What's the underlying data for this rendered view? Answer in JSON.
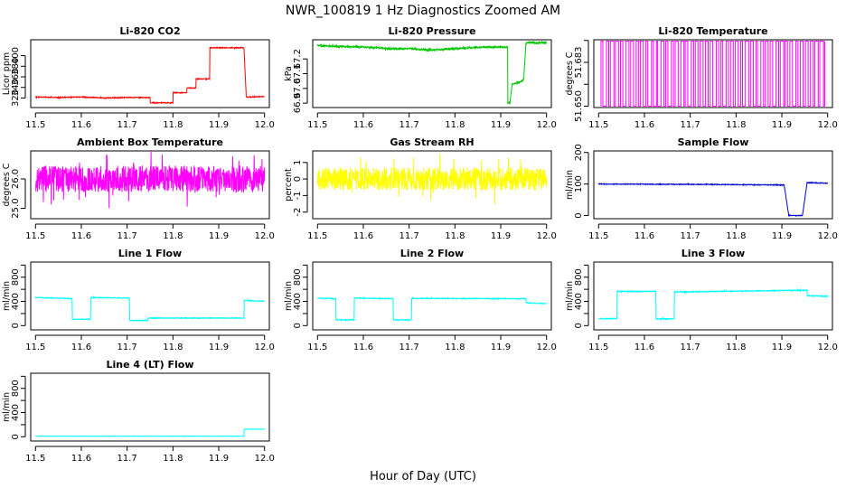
{
  "page": {
    "title": "NWR_100819  1 Hz Diagnostics Zoomed AM",
    "xlabel": "Hour of Day (UTC)"
  },
  "chart_data": [
    {
      "type": "line",
      "title": "Li-820 CO2",
      "xlabel": "",
      "ylabel": "Licor ppm",
      "color": "#ff0000",
      "xlim": [
        11.5,
        12.0
      ],
      "x_ticks": [
        11.5,
        11.6,
        11.7,
        11.8,
        11.9,
        12.0
      ],
      "x_tick_labels": [
        "11.5",
        "11.6",
        "11.7",
        "11.8",
        "11.9",
        "12.0"
      ],
      "ylim": [
        302,
        430
      ],
      "y_ticks": [
        320,
        340,
        360,
        380,
        400
      ],
      "y_tick_labels": [
        "320",
        "340",
        "360",
        "380",
        "400"
      ],
      "noise": 0.8,
      "series": [
        {
          "x": [
            11.5,
            11.55,
            11.6,
            11.65,
            11.7,
            11.75,
            11.75,
            11.8,
            11.8,
            11.83,
            11.83,
            11.85,
            11.85,
            11.88,
            11.88,
            11.955,
            11.96,
            11.97,
            12.0
          ],
          "y": [
            322,
            321,
            322,
            320,
            321,
            321,
            311,
            311,
            330,
            330,
            339,
            339,
            356,
            356,
            415,
            415,
            322,
            322,
            323
          ]
        }
      ]
    },
    {
      "type": "line",
      "title": "Li-820 Pressure",
      "ylabel": "kPa",
      "color": "#00c800",
      "xlim": [
        11.5,
        12.0
      ],
      "x_ticks": [
        11.5,
        11.6,
        11.7,
        11.8,
        11.9,
        12.0
      ],
      "x_tick_labels": [
        "11.5",
        "11.6",
        "11.7",
        "11.8",
        "11.9",
        "12.0"
      ],
      "ylim": [
        66.87,
        67.33
      ],
      "y_ticks": [
        66.9,
        67.0,
        67.1,
        67.2
      ],
      "y_tick_labels": [
        "66.9",
        "67.0",
        "67.1",
        "67.2"
      ],
      "noise": 0.006,
      "series": [
        {
          "x": [
            11.5,
            11.55,
            11.6,
            11.65,
            11.7,
            11.75,
            11.8,
            11.85,
            11.9,
            11.915,
            11.915,
            11.92,
            11.925,
            11.94,
            11.95,
            11.955,
            11.96,
            11.97,
            12.0
          ],
          "y": [
            67.29,
            67.285,
            67.28,
            67.27,
            67.27,
            67.26,
            67.27,
            67.28,
            67.28,
            67.28,
            66.9,
            66.9,
            67.03,
            67.04,
            67.06,
            67.305,
            67.31,
            67.31,
            67.31
          ]
        }
      ]
    },
    {
      "type": "line",
      "title": "Li-820 Temperature",
      "ylabel": "degrees C",
      "color": "#ff00ff",
      "xlim": [
        11.5,
        12.0
      ],
      "x_ticks": [
        11.5,
        11.6,
        11.7,
        11.8,
        11.9,
        12.0
      ],
      "x_tick_labels": [
        "11.5",
        "11.6",
        "11.7",
        "11.8",
        "11.9",
        "12.0"
      ],
      "ylim": [
        51.649,
        51.7
      ],
      "y_ticks": [
        51.65,
        51.6665,
        51.683,
        51.6995
      ],
      "y_tick_labels": [
        "51.650",
        "",
        "51.683",
        ""
      ],
      "toggle": {
        "low": 51.65,
        "high": 51.699,
        "start": 11.505,
        "end": 11.995,
        "count": 90
      },
      "series": []
    },
    {
      "type": "line",
      "title": "Ambient Box Temperature",
      "ylabel": "degrees C",
      "color": "#ff00ff",
      "xlim": [
        11.5,
        12.0
      ],
      "x_ticks": [
        11.5,
        11.6,
        11.7,
        11.8,
        11.9,
        12.0
      ],
      "x_tick_labels": [
        "11.5",
        "11.6",
        "11.7",
        "11.8",
        "11.9",
        "12.0"
      ],
      "ylim": [
        24.65,
        26.95
      ],
      "y_ticks": [
        25.0,
        26.0
      ],
      "y_tick_labels": [
        "25.0",
        "26.0"
      ],
      "noise": 0.45,
      "series": [
        {
          "x": [
            11.5,
            12.0
          ],
          "y": [
            26.0,
            26.0
          ]
        }
      ]
    },
    {
      "type": "line",
      "title": "Gas Stream RH",
      "ylabel": "percent",
      "color": "#ffff00",
      "xlim": [
        11.5,
        12.0
      ],
      "x_ticks": [
        11.5,
        11.6,
        11.7,
        11.8,
        11.9,
        12.0
      ],
      "x_tick_labels": [
        "11.5",
        "11.6",
        "11.7",
        "11.8",
        "11.9",
        "12.0"
      ],
      "ylim": [
        -2.4,
        1.7
      ],
      "y_ticks": [
        -2,
        -1,
        0,
        1
      ],
      "y_tick_labels": [
        "-2",
        "-1",
        "0",
        "1"
      ],
      "noise": 0.7,
      "series": [
        {
          "x": [
            11.5,
            12.0
          ],
          "y": [
            0.0,
            0.0
          ]
        }
      ]
    },
    {
      "type": "line",
      "title": "Sample Flow",
      "ylabel": "ml/min",
      "color": "#0000cc",
      "xlim": [
        11.5,
        12.0
      ],
      "x_ticks": [
        11.5,
        11.6,
        11.7,
        11.8,
        11.9,
        12.0
      ],
      "x_tick_labels": [
        "11.5",
        "11.6",
        "11.7",
        "11.8",
        "11.9",
        "12.0"
      ],
      "ylim": [
        -10,
        205
      ],
      "y_ticks": [
        0,
        100,
        200
      ],
      "y_tick_labels": [
        "0",
        "100",
        "200"
      ],
      "noise": 1.2,
      "series": [
        {
          "x": [
            11.5,
            11.7,
            11.8,
            11.905,
            11.915,
            11.945,
            11.955,
            11.965,
            12.0
          ],
          "y": [
            100,
            99,
            98,
            97,
            0,
            0,
            104,
            104,
            102
          ]
        }
      ]
    },
    {
      "type": "line",
      "title": "Line 1 Flow",
      "ylabel": "ml/min",
      "color": "#00ffff",
      "xlim": [
        11.5,
        12.0
      ],
      "x_ticks": [
        11.5,
        11.6,
        11.7,
        11.8,
        11.9,
        12.0
      ],
      "x_tick_labels": [
        "11.5",
        "11.6",
        "11.7",
        "11.8",
        "11.9",
        "12.0"
      ],
      "ylim": [
        -70,
        1050
      ],
      "y_ticks": [
        0,
        200,
        400,
        600,
        800,
        1000
      ],
      "y_tick_labels": [
        "0",
        "",
        "400",
        "",
        "800",
        ""
      ],
      "noise": 6,
      "series": [
        {
          "x": [
            11.5,
            11.58,
            11.58,
            11.62,
            11.62,
            11.705,
            11.705,
            11.745,
            11.745,
            11.955,
            11.955,
            12.0
          ],
          "y": [
            465,
            445,
            105,
            105,
            465,
            455,
            85,
            85,
            125,
            125,
            415,
            405
          ]
        }
      ]
    },
    {
      "type": "line",
      "title": "Line 2 Flow",
      "ylabel": "ml/min",
      "color": "#00ffff",
      "xlim": [
        11.5,
        12.0
      ],
      "x_ticks": [
        11.5,
        11.6,
        11.7,
        11.8,
        11.9,
        12.0
      ],
      "x_tick_labels": [
        "11.5",
        "11.6",
        "11.7",
        "11.8",
        "11.9",
        "12.0"
      ],
      "ylim": [
        -70,
        1050
      ],
      "y_ticks": [
        0,
        200,
        400,
        600,
        800,
        1000
      ],
      "y_tick_labels": [
        "0",
        "",
        "400",
        "",
        "800",
        ""
      ],
      "noise": 6,
      "series": [
        {
          "x": [
            11.5,
            11.54,
            11.54,
            11.58,
            11.58,
            11.665,
            11.665,
            11.705,
            11.705,
            11.955,
            11.955,
            12.0
          ],
          "y": [
            455,
            445,
            95,
            95,
            455,
            445,
            95,
            95,
            450,
            445,
            375,
            365
          ]
        }
      ]
    },
    {
      "type": "line",
      "title": "Line 3 Flow",
      "ylabel": "ml/min",
      "color": "#00ffff",
      "xlim": [
        11.5,
        12.0
      ],
      "x_ticks": [
        11.5,
        11.6,
        11.7,
        11.8,
        11.9,
        12.0
      ],
      "x_tick_labels": [
        "11.5",
        "11.6",
        "11.7",
        "11.8",
        "11.9",
        "12.0"
      ],
      "ylim": [
        -70,
        1050
      ],
      "y_ticks": [
        0,
        200,
        400,
        600,
        800,
        1000
      ],
      "y_tick_labels": [
        "0",
        "",
        "400",
        "",
        "800",
        ""
      ],
      "noise": 7,
      "series": [
        {
          "x": [
            11.5,
            11.54,
            11.54,
            11.625,
            11.625,
            11.665,
            11.665,
            11.955,
            11.955,
            12.0
          ],
          "y": [
            115,
            115,
            565,
            565,
            110,
            110,
            555,
            585,
            495,
            485
          ]
        }
      ]
    },
    {
      "type": "line",
      "title": "Line 4 (LT) Flow",
      "ylabel": "ml/min",
      "color": "#00ffff",
      "xlim": [
        11.5,
        12.0
      ],
      "x_ticks": [
        11.5,
        11.6,
        11.7,
        11.8,
        11.9,
        12.0
      ],
      "x_tick_labels": [
        "11.5",
        "11.6",
        "11.7",
        "11.8",
        "11.9",
        "12.0"
      ],
      "ylim": [
        -70,
        1050
      ],
      "y_ticks": [
        0,
        200,
        400,
        600,
        800,
        1000
      ],
      "y_tick_labels": [
        "0",
        "",
        "400",
        "",
        "800",
        ""
      ],
      "noise": 3,
      "series": [
        {
          "x": [
            11.5,
            11.955,
            11.955,
            12.0
          ],
          "y": [
            10,
            10,
            125,
            125
          ]
        }
      ]
    }
  ]
}
